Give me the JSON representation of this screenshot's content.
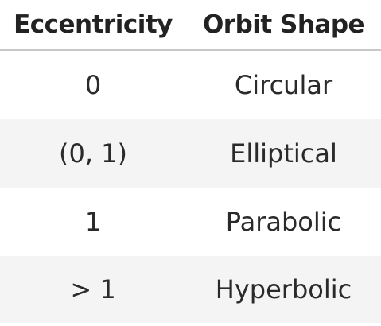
{
  "table": {
    "headers": [
      "Eccentricity",
      "Orbit Shape"
    ],
    "rows": [
      [
        "0",
        "Circular"
      ],
      [
        "(0, 1)",
        "Elliptical"
      ],
      [
        "1",
        "Parabolic"
      ],
      [
        "> 1",
        "Hyperbolic"
      ]
    ]
  },
  "colors": {
    "stripe": "#f4f4f4",
    "divider": "#c8c8c8",
    "text": "#222222"
  }
}
